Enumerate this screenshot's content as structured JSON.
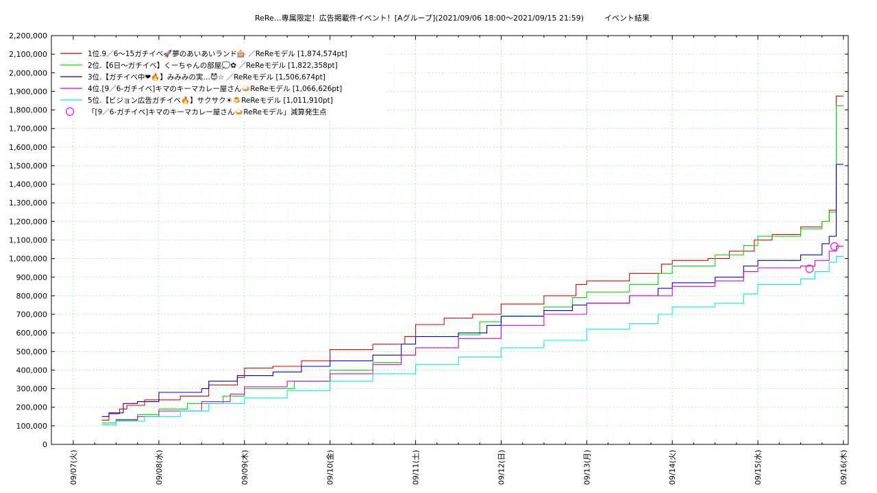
{
  "chart_data": {
    "type": "line",
    "title": "ReRe…専属限定！広告掲載件イベント！[Aグループ](2021/09/06 18:00～2021/09/15 21:59)",
    "subtitle": "イベント結果",
    "xlabel": "",
    "ylabel": "",
    "xlim": [
      "09/07 00:00",
      "09/16 00:00"
    ],
    "ylim": [
      0,
      2200000
    ],
    "grid": true,
    "legend_position": "top-left",
    "x_ticks": [
      "09/07(火)",
      "09/08(水)",
      "09/09(木)",
      "09/10(金)",
      "09/11(土)",
      "09/12(日)",
      "09/13(月)",
      "09/14(火)",
      "09/15(水)",
      "09/16(木)"
    ],
    "y_ticks": [
      "0",
      "100,000",
      "200,000",
      "300,000",
      "400,000",
      "500,000",
      "600,000",
      "700,000",
      "800,000",
      "900,000",
      "1,000,000",
      "1,100,000",
      "1,200,000",
      "1,300,000",
      "1,400,000",
      "1,500,000",
      "1,600,000",
      "1,700,000",
      "1,800,000",
      "1,900,000",
      "2,000,000",
      "2,100,000",
      "2,200,000"
    ],
    "series": [
      {
        "name": "1位.9／6〜15ガチイベ🚀夢のあいあいランド🎰 ／ReReモデル [1,874,574pt]",
        "color": "#dd0000",
        "points": [
          [
            "09/07 08:00",
            130000
          ],
          [
            "09/07 10:00",
            165000
          ],
          [
            "09/07 13:00",
            190000
          ],
          [
            "09/07 15:00",
            210000
          ],
          [
            "09/07 20:00",
            240000
          ],
          [
            "09/08 06:00",
            260000
          ],
          [
            "09/08 14:00",
            320000
          ],
          [
            "09/08 22:00",
            360000
          ],
          [
            "09/09 00:00",
            410000
          ],
          [
            "09/09 08:00",
            420000
          ],
          [
            "09/09 16:00",
            450000
          ],
          [
            "09/10 00:00",
            510000
          ],
          [
            "09/10 12:00",
            540000
          ],
          [
            "09/10 21:00",
            580000
          ],
          [
            "09/11 00:00",
            645000
          ],
          [
            "09/11 08:00",
            680000
          ],
          [
            "09/11 16:00",
            700000
          ],
          [
            "09/12 00:00",
            755000
          ],
          [
            "09/12 12:00",
            800000
          ],
          [
            "09/12 21:00",
            860000
          ],
          [
            "09/13 00:00",
            880000
          ],
          [
            "09/13 12:00",
            920000
          ],
          [
            "09/13 21:00",
            970000
          ],
          [
            "09/14 00:00",
            990000
          ],
          [
            "09/14 10:00",
            1000000
          ],
          [
            "09/14 16:00",
            1040000
          ],
          [
            "09/14 23:00",
            1100000
          ],
          [
            "09/15 04:00",
            1130000
          ],
          [
            "09/15 12:00",
            1170000
          ],
          [
            "09/15 18:00",
            1200000
          ],
          [
            "09/15 20:00",
            1260000
          ],
          [
            "09/15 21:59",
            1874574
          ],
          [
            "09/16 00:00",
            1874574
          ]
        ]
      },
      {
        "name": "2位.【6日〜ガチイベ】くーちゃんの部屋💭✿ ／ReReモデル [1,822,358pt]",
        "color": "#00dd00",
        "points": [
          [
            "09/07 08:00",
            115000
          ],
          [
            "09/07 12:00",
            135000
          ],
          [
            "09/07 18:00",
            160000
          ],
          [
            "09/08 00:00",
            190000
          ],
          [
            "09/08 08:00",
            220000
          ],
          [
            "09/08 18:00",
            260000
          ],
          [
            "09/09 00:00",
            300000
          ],
          [
            "09/09 14:00",
            340000
          ],
          [
            "09/10 00:00",
            400000
          ],
          [
            "09/10 12:00",
            440000
          ],
          [
            "09/10 20:00",
            480000
          ],
          [
            "09/11 00:00",
            520000
          ],
          [
            "09/11 12:00",
            590000
          ],
          [
            "09/11 18:00",
            660000
          ],
          [
            "09/12 00:00",
            690000
          ],
          [
            "09/12 12:00",
            740000
          ],
          [
            "09/12 20:00",
            790000
          ],
          [
            "09/13 00:00",
            820000
          ],
          [
            "09/13 12:00",
            860000
          ],
          [
            "09/13 20:00",
            920000
          ],
          [
            "09/14 00:00",
            960000
          ],
          [
            "09/14 12:00",
            1020000
          ],
          [
            "09/14 20:00",
            1070000
          ],
          [
            "09/15 00:00",
            1120000
          ],
          [
            "09/15 12:00",
            1160000
          ],
          [
            "09/15 18:00",
            1200000
          ],
          [
            "09/15 20:00",
            1250000
          ],
          [
            "09/15 21:59",
            1822358
          ],
          [
            "09/16 00:00",
            1822358
          ]
        ]
      },
      {
        "name": "3位.【ガチイベ中❤🔥】みみみの実…😈☆ ／ReReモデル [1,506,674pt]",
        "color": "#0000cc",
        "points": [
          [
            "09/07 08:00",
            150000
          ],
          [
            "09/07 10:00",
            170000
          ],
          [
            "09/07 14:00",
            220000
          ],
          [
            "09/07 18:00",
            230000
          ],
          [
            "09/08 00:00",
            280000
          ],
          [
            "09/08 12:00",
            300000
          ],
          [
            "09/08 14:00",
            340000
          ],
          [
            "09/08 22:00",
            370000
          ],
          [
            "09/09 08:00",
            390000
          ],
          [
            "09/09 16:00",
            420000
          ],
          [
            "09/10 00:00",
            450000
          ],
          [
            "09/10 12:00",
            480000
          ],
          [
            "09/10 20:00",
            540000
          ],
          [
            "09/11 00:00",
            580000
          ],
          [
            "09/11 12:00",
            600000
          ],
          [
            "09/11 20:00",
            640000
          ],
          [
            "09/12 00:00",
            690000
          ],
          [
            "09/12 12:00",
            720000
          ],
          [
            "09/12 20:00",
            750000
          ],
          [
            "09/13 00:00",
            760000
          ],
          [
            "09/13 12:00",
            800000
          ],
          [
            "09/13 20:00",
            840000
          ],
          [
            "09/14 00:00",
            870000
          ],
          [
            "09/14 12:00",
            900000
          ],
          [
            "09/14 20:00",
            960000
          ],
          [
            "09/15 00:00",
            990000
          ],
          [
            "09/15 12:00",
            1020000
          ],
          [
            "09/15 18:00",
            1080000
          ],
          [
            "09/15 20:00",
            1120000
          ],
          [
            "09/15 21:59",
            1506674
          ],
          [
            "09/16 00:00",
            1506674
          ]
        ]
      },
      {
        "name": "4位.[9／6-ガチイベ]キマのキーマカレー屋さん🍛ReReモデル [1,066,626pt]",
        "color": "#dd00dd",
        "points": [
          [
            "09/07 08:00",
            105000
          ],
          [
            "09/07 12:00",
            130000
          ],
          [
            "09/07 18:00",
            150000
          ],
          [
            "09/08 00:00",
            180000
          ],
          [
            "09/08 12:00",
            230000
          ],
          [
            "09/08 20:00",
            270000
          ],
          [
            "09/09 00:00",
            310000
          ],
          [
            "09/09 12:00",
            340000
          ],
          [
            "09/10 00:00",
            380000
          ],
          [
            "09/10 12:00",
            430000
          ],
          [
            "09/10 20:00",
            480000
          ],
          [
            "09/11 00:00",
            520000
          ],
          [
            "09/11 12:00",
            570000
          ],
          [
            "09/12 00:00",
            640000
          ],
          [
            "09/12 12:00",
            700000
          ],
          [
            "09/13 00:00",
            760000
          ],
          [
            "09/13 12:00",
            800000
          ],
          [
            "09/14 00:00",
            850000
          ],
          [
            "09/14 12:00",
            880000
          ],
          [
            "09/14 20:00",
            930000
          ],
          [
            "09/15 00:00",
            950000
          ],
          [
            "09/15 12:00",
            960000
          ],
          [
            "09/15 16:00",
            990000
          ],
          [
            "09/15 20:00",
            1040000
          ],
          [
            "09/15 21:59",
            1066626
          ],
          [
            "09/16 00:00",
            1066626
          ]
        ]
      },
      {
        "name": "5位.【ビジョン広告ガチイベ🔥】サクサク☀🍮ReReモデル [1,011,910pt]",
        "color": "#00eeee",
        "points": [
          [
            "09/07 08:00",
            105000
          ],
          [
            "09/07 12:00",
            125000
          ],
          [
            "09/07 20:00",
            150000
          ],
          [
            "09/08 06:00",
            180000
          ],
          [
            "09/08 14:00",
            220000
          ],
          [
            "09/09 00:00",
            250000
          ],
          [
            "09/09 12:00",
            290000
          ],
          [
            "09/10 00:00",
            340000
          ],
          [
            "09/10 12:00",
            380000
          ],
          [
            "09/11 00:00",
            430000
          ],
          [
            "09/11 12:00",
            470000
          ],
          [
            "09/12 00:00",
            520000
          ],
          [
            "09/12 12:00",
            560000
          ],
          [
            "09/13 00:00",
            620000
          ],
          [
            "09/13 12:00",
            650000
          ],
          [
            "09/13 20:00",
            700000
          ],
          [
            "09/14 00:00",
            740000
          ],
          [
            "09/14 12:00",
            760000
          ],
          [
            "09/14 20:00",
            810000
          ],
          [
            "09/15 00:00",
            860000
          ],
          [
            "09/15 12:00",
            890000
          ],
          [
            "09/15 16:00",
            930000
          ],
          [
            "09/15 20:00",
            980000
          ],
          [
            "09/15 21:59",
            1011910
          ],
          [
            "09/16 00:00",
            1011910
          ]
        ]
      }
    ],
    "markers": {
      "name": "「[9／6-ガチイベ]キマのキーマカレー屋さん🍛ReReモデル」減算発生点",
      "color": "#ff00ff",
      "points": [
        [
          "09/15 14:30",
          945000
        ],
        [
          "09/15 21:30",
          1065000
        ]
      ]
    }
  }
}
